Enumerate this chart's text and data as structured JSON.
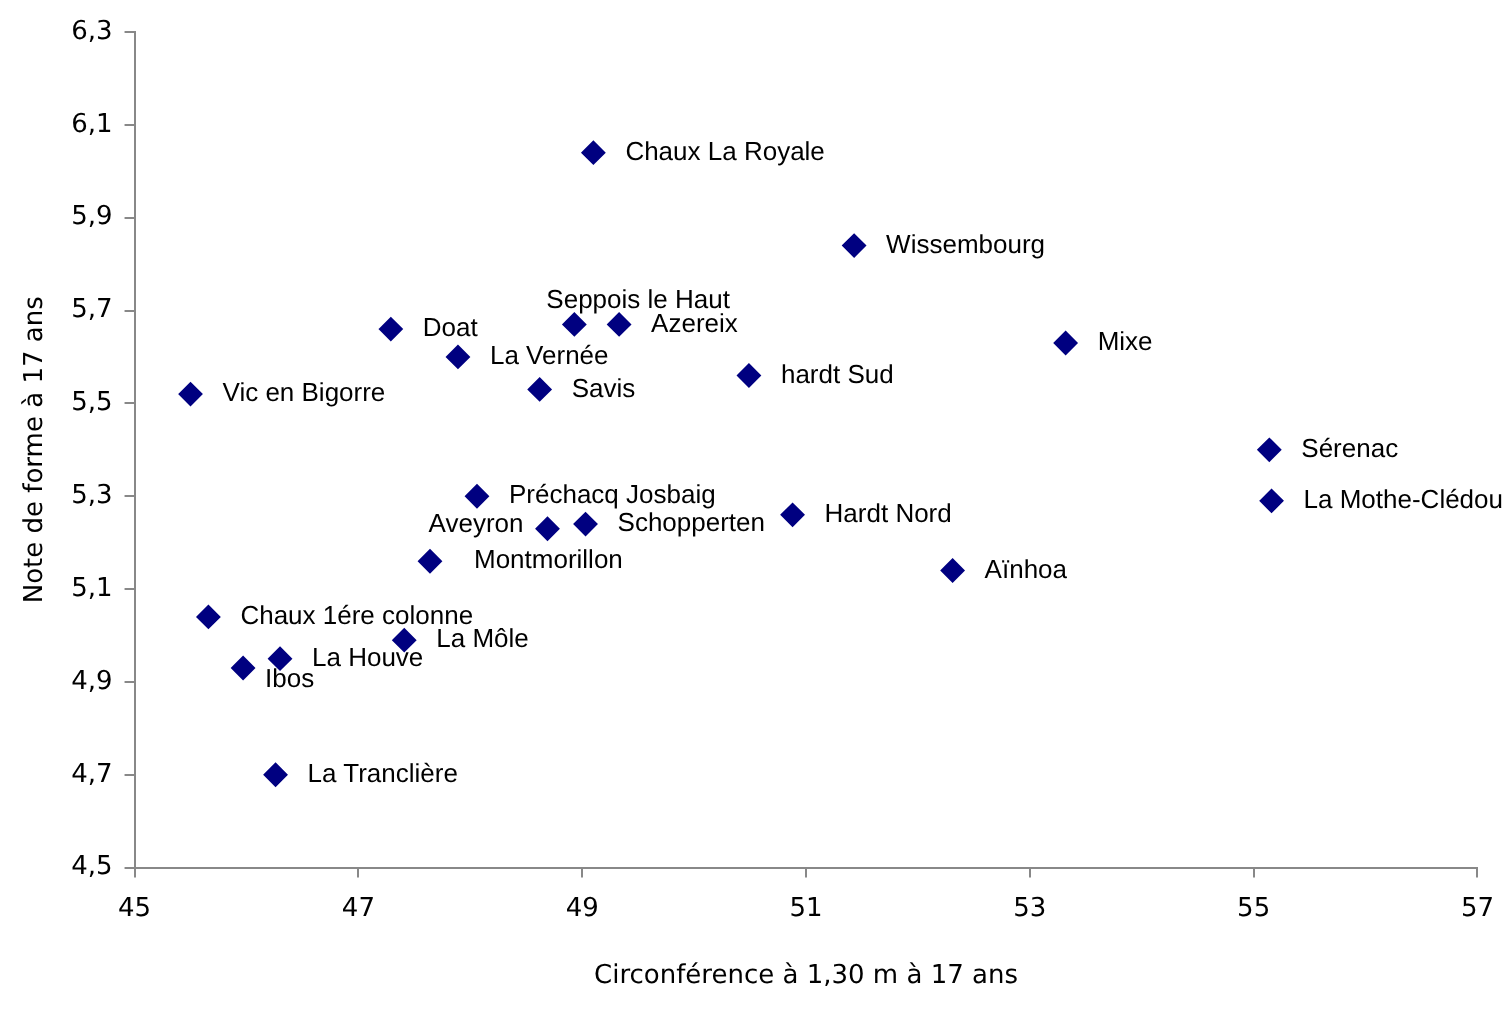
{
  "chart_data": {
    "type": "scatter",
    "xlabel": "Circonférence à 1,30 m à 17 ans",
    "ylabel": "Note de forme à 17 ans",
    "x": [
      49.1,
      47.29,
      47.89,
      48.93,
      49.33,
      48.62,
      45.5,
      51.43,
      50.49,
      53.32,
      55.14,
      55.16,
      50.88,
      52.31,
      48.06,
      48.69,
      49.03,
      47.64,
      45.66,
      47.41,
      46.3,
      45.97,
      46.26
    ],
    "series": [
      {
        "color": "#000080",
        "values": [
          6.04,
          5.66,
          5.6,
          5.67,
          5.67,
          5.53,
          5.52,
          5.84,
          5.56,
          5.63,
          5.4,
          5.29,
          5.26,
          5.14,
          5.3,
          5.23,
          5.24,
          5.16,
          5.04,
          4.99,
          4.95,
          4.93,
          4.7
        ]
      }
    ],
    "annotations": [
      {
        "text": "Chaux La Royale",
        "x": 49.1,
        "y": 6.04
      },
      {
        "text": "Doat",
        "x": 47.29,
        "y": 5.66
      },
      {
        "text": "La Vernée",
        "x": 47.89,
        "y": 5.6
      },
      {
        "text": "Seppois le Haut",
        "x": 48.93,
        "y": 5.67
      },
      {
        "text": "Azereix",
        "x": 49.33,
        "y": 5.67
      },
      {
        "text": "Savis",
        "x": 48.62,
        "y": 5.53
      },
      {
        "text": "Vic en Bigorre",
        "x": 45.5,
        "y": 5.52
      },
      {
        "text": "Wissembourg",
        "x": 51.43,
        "y": 5.84
      },
      {
        "text": "hardt Sud",
        "x": 50.49,
        "y": 5.56
      },
      {
        "text": "Mixe",
        "x": 53.32,
        "y": 5.63
      },
      {
        "text": "Sérenac",
        "x": 55.14,
        "y": 5.4
      },
      {
        "text": "La Mothe-Clédou",
        "x": 55.16,
        "y": 5.29
      },
      {
        "text": "Hardt Nord",
        "x": 50.88,
        "y": 5.26
      },
      {
        "text": "Aïnhoa",
        "x": 52.31,
        "y": 5.14
      },
      {
        "text": "Préchacq Josbaig",
        "x": 48.06,
        "y": 5.3
      },
      {
        "text": "Aveyron",
        "x": 48.69,
        "y": 5.23
      },
      {
        "text": "Schopperten",
        "x": 49.03,
        "y": 5.24
      },
      {
        "text": "Montmorillon",
        "x": 47.64,
        "y": 5.16
      },
      {
        "text": "Chaux 1ére colonne",
        "x": 45.66,
        "y": 5.04
      },
      {
        "text": "La Môle",
        "x": 47.41,
        "y": 4.99
      },
      {
        "text": "La Houve",
        "x": 46.3,
        "y": 4.95
      },
      {
        "text": "Ibos",
        "x": 45.97,
        "y": 4.93
      },
      {
        "text": "La Tranclière",
        "x": 46.26,
        "y": 4.7
      }
    ],
    "xlim": [
      45,
      57
    ],
    "xticks": [
      45,
      47,
      49,
      51,
      53,
      55,
      57
    ],
    "ylim": [
      4.5,
      6.3
    ],
    "yticks": [
      {
        "value": 4.5,
        "label": "4,5"
      },
      {
        "value": 4.7,
        "label": "4,7"
      },
      {
        "value": 4.9,
        "label": "4,9"
      },
      {
        "value": 5.1,
        "label": "5,1"
      },
      {
        "value": 5.3,
        "label": "5,3"
      },
      {
        "value": 5.5,
        "label": "5,5"
      },
      {
        "value": 5.7,
        "label": "5,7"
      },
      {
        "value": 5.9,
        "label": "5,9"
      },
      {
        "value": 6.1,
        "label": "6,1"
      },
      {
        "value": 6.3,
        "label": "6,3"
      }
    ],
    "grid": false,
    "legend": false,
    "marker": "diamond"
  }
}
